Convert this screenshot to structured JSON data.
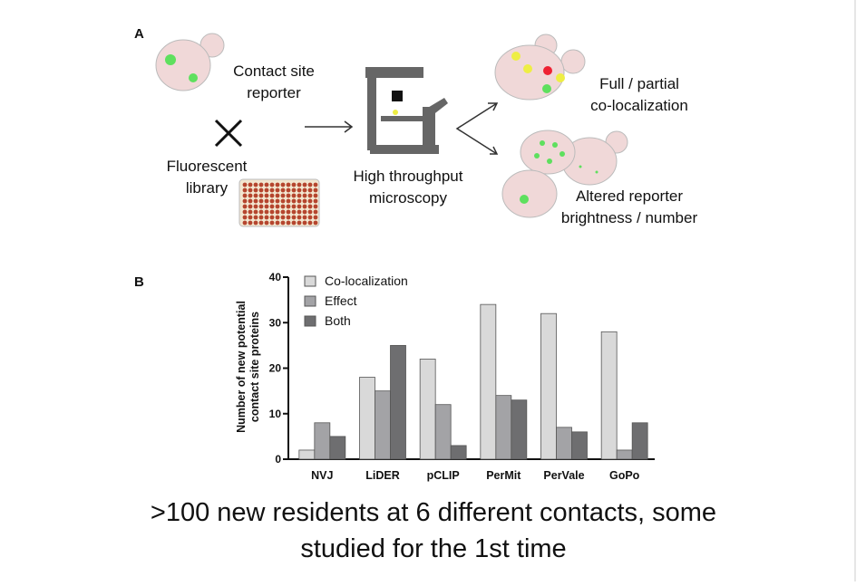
{
  "panel_a": {
    "label": "A",
    "reporter": [
      "Contact site",
      "reporter"
    ],
    "library": [
      "Fluorescent",
      "library"
    ],
    "microscopy": [
      "High throughput",
      "microscopy"
    ],
    "outcome_1": [
      "Full / partial",
      "co-localization"
    ],
    "outcome_2": [
      "Altered reporter",
      "brightness / number"
    ]
  },
  "chart_data": {
    "type": "bar",
    "panel_label": "B",
    "y_label": [
      "Number of new potential",
      "contact site proteins"
    ],
    "categories": [
      "NVJ",
      "LiDER",
      "pCLIP",
      "PerMit",
      "PerVale",
      "GoPo"
    ],
    "series": [
      {
        "name": "Co-localization",
        "color": "#d9d9d9",
        "values": [
          2,
          18,
          22,
          34,
          32,
          28
        ]
      },
      {
        "name": "Effect",
        "color": "#a3a3a6",
        "values": [
          8,
          15,
          12,
          14,
          7,
          2
        ]
      },
      {
        "name": "Both",
        "color": "#6e6e70",
        "values": [
          5,
          25,
          3,
          13,
          6,
          8
        ]
      }
    ],
    "ylim": [
      0,
      40
    ],
    "yticks": [
      0,
      10,
      20,
      30,
      40
    ],
    "legend": "top-left"
  },
  "caption": [
    ">100 new residents at 6 different contacts, some",
    "studied for the 1st time"
  ]
}
